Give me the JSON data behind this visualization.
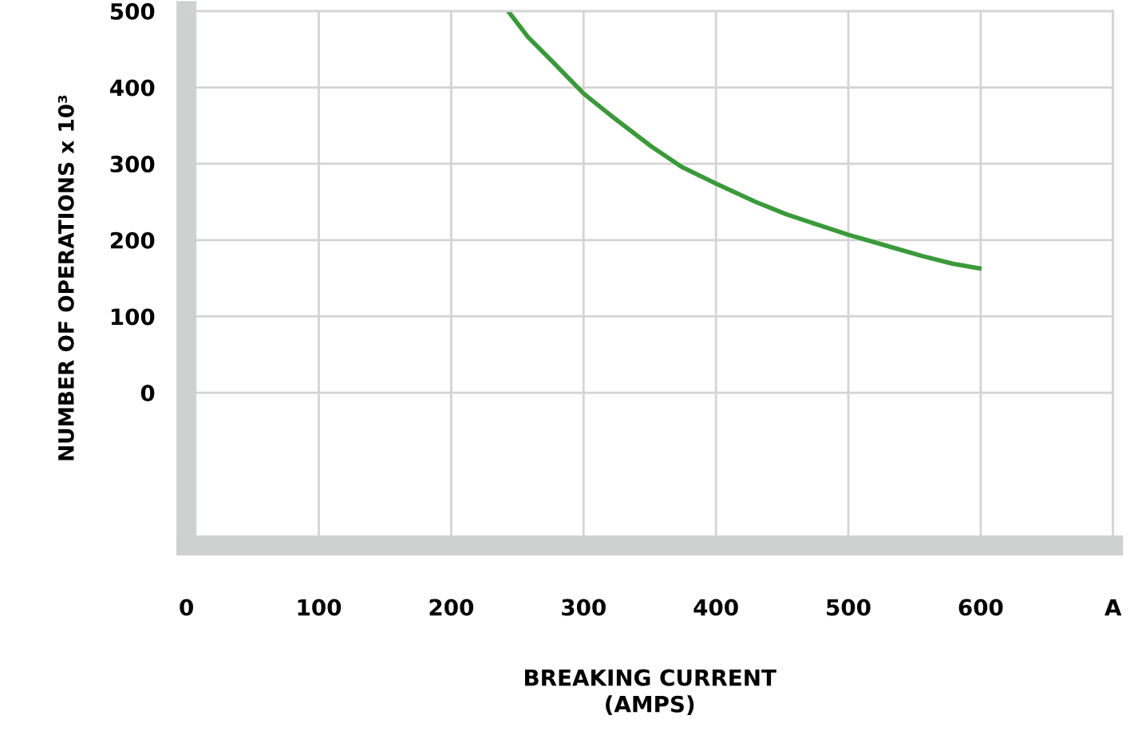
{
  "chart_data": {
    "type": "line",
    "xlabel": "BREAKING CURRENT\n(AMPS)",
    "ylabel": "NUMBER OF OPERATIONS x 10³",
    "series": [
      {
        "color": "#3a9a3a",
        "x": [
          243,
          258,
          277,
          300,
          323,
          351,
          374,
          400,
          430,
          453,
          477,
          500,
          528,
          556,
          579,
          599
        ],
        "values": [
          500,
          466,
          433,
          392,
          360,
          323,
          296,
          274,
          250,
          234,
          220,
          207,
          193,
          179,
          169,
          163
        ]
      }
    ],
    "xlim": [
      0,
      700
    ],
    "ylim": [
      -200,
      500
    ],
    "xticks": [
      0,
      100,
      200,
      300,
      400,
      500,
      600,
      {
        "value": 700,
        "label": "A"
      }
    ],
    "yticks": [
      0,
      100,
      200,
      300,
      400,
      500
    ],
    "grid": true,
    "line_style": "solid"
  }
}
